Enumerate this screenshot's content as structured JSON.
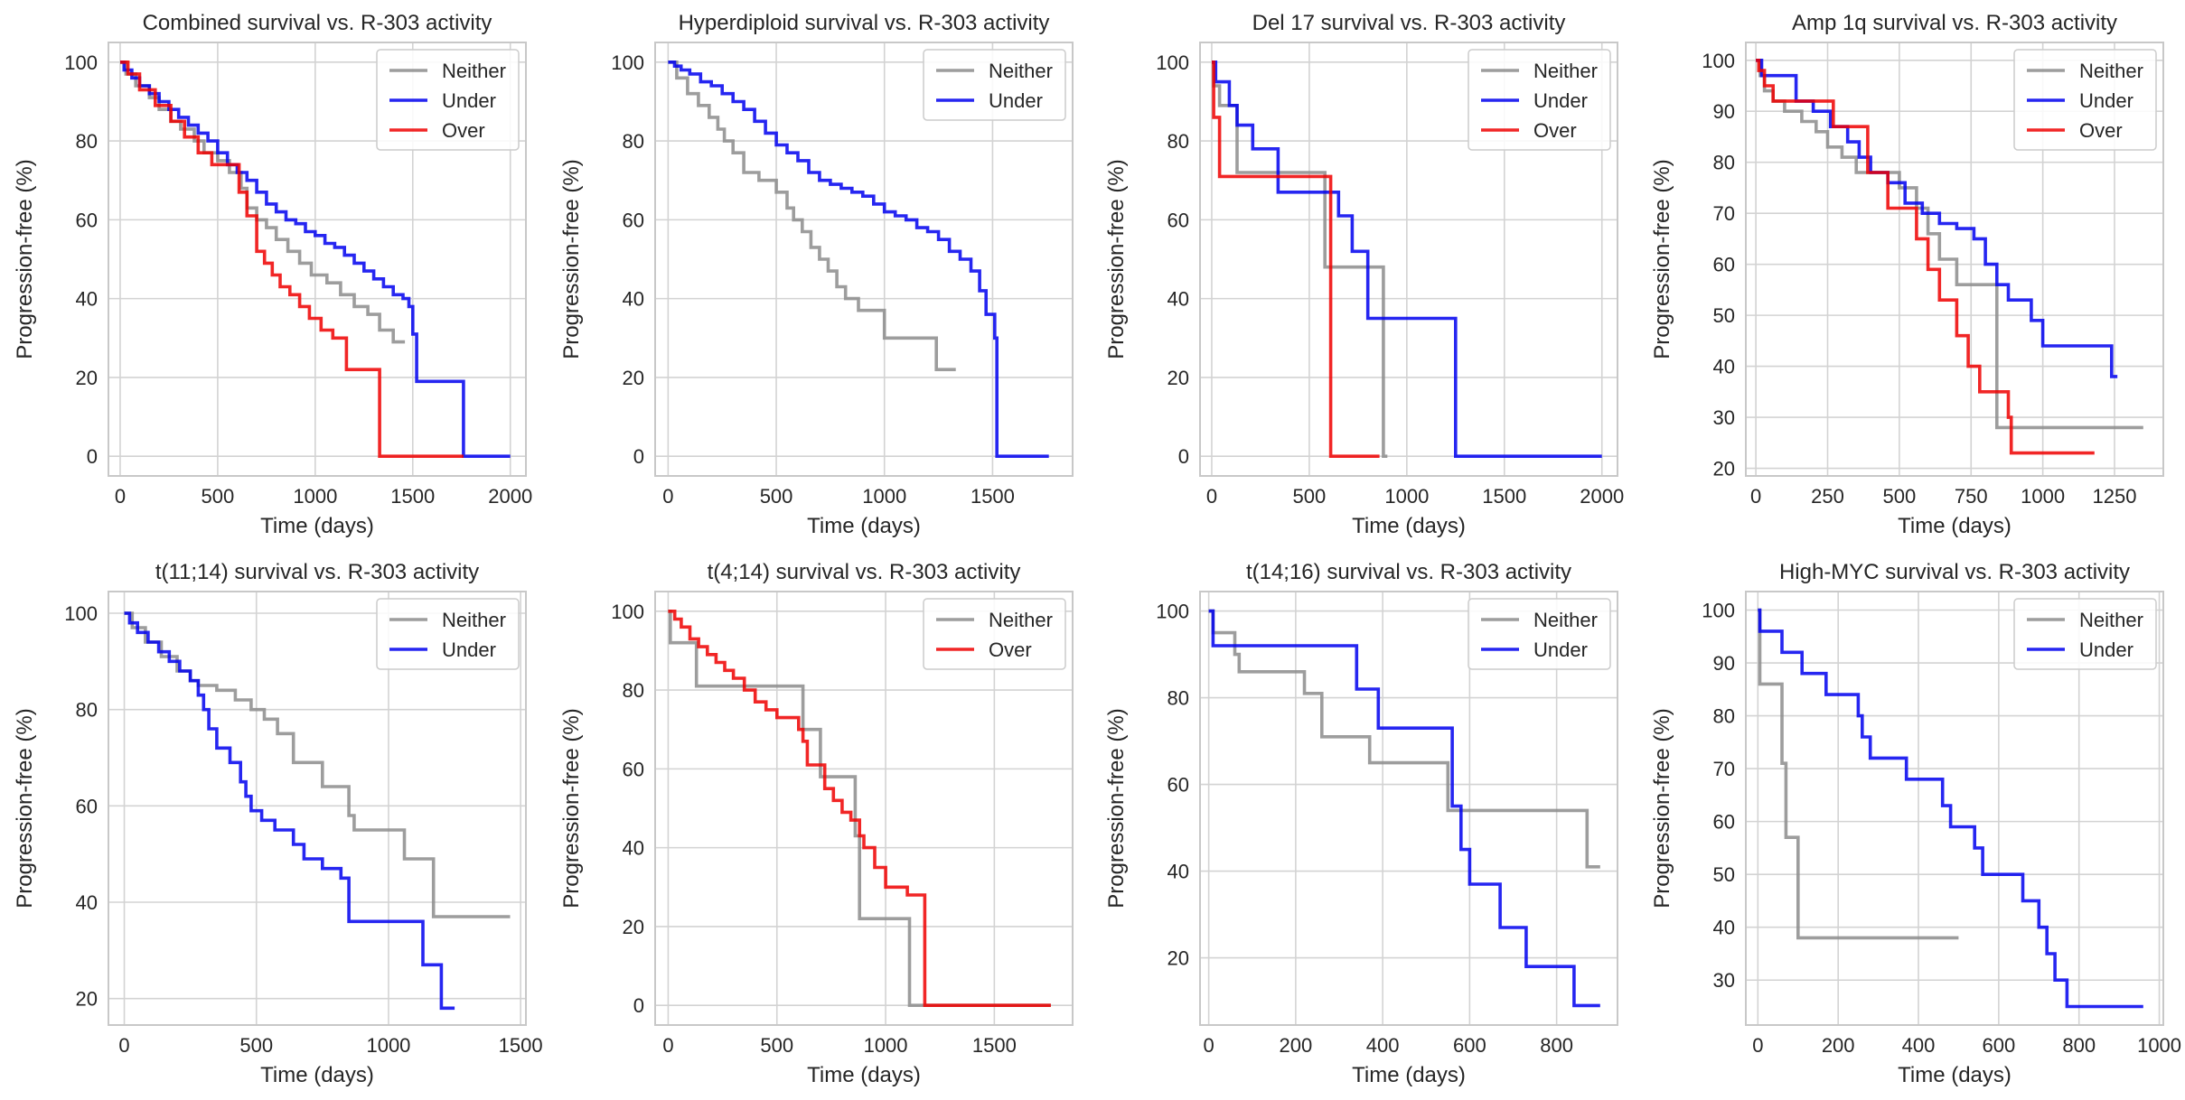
{
  "colors": {
    "Neither": "#8c8c8c",
    "Under": "#0000ee",
    "Over": "#ee0000"
  },
  "chart_data": [
    {
      "type": "line",
      "step": true,
      "title": "Combined survival vs. R-303 activity",
      "xlabel": "Time (days)",
      "ylabel": "Progression-free (%)",
      "xlim": [
        -60,
        2080
      ],
      "ylim": [
        -5,
        105
      ],
      "xticks": [
        0,
        500,
        1000,
        1500,
        2000
      ],
      "yticks": [
        0,
        20,
        40,
        60,
        80,
        100
      ],
      "legend": [
        "Neither",
        "Under",
        "Over"
      ],
      "legend_position": "top-right",
      "series": [
        {
          "name": "Neither",
          "x": [
            0,
            30,
            80,
            150,
            200,
            260,
            310,
            380,
            430,
            500,
            560,
            620,
            650,
            700,
            750,
            800,
            860,
            920,
            980,
            1060,
            1130,
            1200,
            1270,
            1330,
            1400,
            1460
          ],
          "y": [
            100,
            97,
            94,
            91,
            88,
            85,
            83,
            80,
            77,
            75,
            72,
            68,
            63,
            60,
            58,
            55,
            52,
            49,
            46,
            44,
            41,
            38,
            36,
            32,
            29,
            29
          ]
        },
        {
          "name": "Under",
          "x": [
            0,
            20,
            60,
            100,
            150,
            200,
            250,
            300,
            350,
            400,
            450,
            500,
            550,
            600,
            650,
            700,
            750,
            800,
            850,
            900,
            950,
            1000,
            1050,
            1100,
            1150,
            1200,
            1250,
            1300,
            1350,
            1400,
            1450,
            1480,
            1500,
            1520,
            1760,
            2000
          ],
          "y": [
            100,
            98,
            96,
            94,
            92,
            90,
            88,
            86,
            84,
            82,
            80,
            77,
            74,
            72,
            70,
            67,
            64,
            62,
            60,
            59,
            57,
            56,
            54,
            53,
            51,
            49,
            47,
            45,
            43,
            41,
            40,
            38,
            31,
            19,
            0,
            0
          ]
        },
        {
          "name": "Over",
          "x": [
            0,
            40,
            100,
            180,
            260,
            330,
            400,
            470,
            540,
            610,
            650,
            700,
            740,
            780,
            820,
            870,
            920,
            970,
            1030,
            1090,
            1160,
            1330,
            1760
          ],
          "y": [
            100,
            97,
            93,
            89,
            85,
            81,
            77,
            74,
            74,
            67,
            61,
            52,
            49,
            46,
            43,
            41,
            38,
            35,
            32,
            30,
            22,
            0,
            0
          ]
        }
      ]
    },
    {
      "type": "line",
      "step": true,
      "title": "Hyperdiploid survival vs. R-303 activity",
      "xlabel": "Time (days)",
      "ylabel": "Progression-free (%)",
      "xlim": [
        -60,
        1870
      ],
      "ylim": [
        -5,
        105
      ],
      "xticks": [
        0,
        500,
        1000,
        1500
      ],
      "yticks": [
        0,
        20,
        40,
        60,
        80,
        100
      ],
      "legend": [
        "Neither",
        "Under"
      ],
      "legend_position": "top-right",
      "series": [
        {
          "name": "Neither",
          "x": [
            0,
            40,
            90,
            140,
            190,
            230,
            260,
            300,
            350,
            420,
            500,
            550,
            580,
            620,
            660,
            700,
            740,
            780,
            820,
            880,
            1000,
            1240,
            1330
          ],
          "y": [
            100,
            96,
            92,
            89,
            86,
            83,
            80,
            77,
            72,
            70,
            67,
            63,
            60,
            57,
            53,
            50,
            47,
            43,
            40,
            37,
            30,
            22,
            22
          ]
        },
        {
          "name": "Under",
          "x": [
            0,
            30,
            60,
            100,
            150,
            200,
            250,
            300,
            350,
            400,
            450,
            500,
            550,
            600,
            650,
            700,
            750,
            800,
            850,
            900,
            950,
            1000,
            1050,
            1100,
            1150,
            1200,
            1250,
            1300,
            1350,
            1400,
            1440,
            1470,
            1500,
            1510,
            1520,
            1760
          ],
          "y": [
            100,
            99,
            98,
            97,
            95,
            94,
            92,
            90,
            88,
            85,
            82,
            79,
            77,
            75,
            72,
            70,
            69,
            68,
            67,
            66,
            64,
            62,
            61,
            60,
            58,
            57,
            55,
            52,
            50,
            47,
            42,
            36,
            36,
            30,
            0,
            0
          ]
        }
      ]
    },
    {
      "type": "line",
      "step": true,
      "title": "Del 17 survival vs. R-303 activity",
      "xlabel": "Time (days)",
      "ylabel": "Progression-free (%)",
      "xlim": [
        -60,
        2080
      ],
      "ylim": [
        -5,
        105
      ],
      "xticks": [
        0,
        500,
        1000,
        1500,
        2000
      ],
      "yticks": [
        0,
        20,
        40,
        60,
        80,
        100
      ],
      "legend": [
        "Neither",
        "Under",
        "Over"
      ],
      "legend_position": "top-right",
      "series": [
        {
          "name": "Neither",
          "x": [
            0,
            10,
            40,
            130,
            560,
            580,
            860,
            880,
            900
          ],
          "y": [
            100,
            94,
            89,
            72,
            72,
            48,
            48,
            0,
            0
          ]
        },
        {
          "name": "Under",
          "x": [
            0,
            20,
            90,
            130,
            210,
            340,
            560,
            650,
            720,
            800,
            1250,
            2000
          ],
          "y": [
            100,
            95,
            89,
            84,
            78,
            67,
            67,
            61,
            52,
            35,
            0,
            0
          ]
        },
        {
          "name": "Over",
          "x": [
            0,
            10,
            40,
            600,
            610,
            860
          ],
          "y": [
            100,
            86,
            71,
            71,
            0,
            0
          ]
        }
      ]
    },
    {
      "type": "line",
      "step": true,
      "title": "Amp 1q survival vs. R-303 activity",
      "xlabel": "Time (days)",
      "ylabel": "Progression-free (%)",
      "xlim": [
        -35,
        1420
      ],
      "ylim": [
        18.5,
        103.5
      ],
      "xticks": [
        0,
        250,
        500,
        750,
        1000,
        1250
      ],
      "yticks": [
        20,
        30,
        40,
        50,
        60,
        70,
        80,
        90,
        100
      ],
      "legend": [
        "Neither",
        "Under",
        "Over"
      ],
      "legend_position": "top-right",
      "series": [
        {
          "name": "Neither",
          "x": [
            0,
            15,
            30,
            60,
            100,
            160,
            210,
            250,
            300,
            350,
            400,
            450,
            500,
            560,
            600,
            640,
            700,
            760,
            820,
            840,
            850,
            1350
          ],
          "y": [
            100,
            97,
            94,
            92,
            90,
            88,
            86,
            83,
            81,
            78,
            78,
            78,
            75,
            71,
            66,
            61,
            56,
            56,
            56,
            28,
            28,
            28
          ]
        },
        {
          "name": "Under",
          "x": [
            0,
            20,
            140,
            200,
            260,
            320,
            360,
            400,
            460,
            520,
            580,
            640,
            700,
            760,
            800,
            840,
            880,
            960,
            1000,
            1240,
            1260
          ],
          "y": [
            100,
            97,
            92,
            90,
            87,
            84,
            81,
            78,
            76,
            72,
            70,
            68,
            67,
            65,
            60,
            56,
            53,
            49,
            44,
            38,
            38
          ]
        },
        {
          "name": "Over",
          "x": [
            0,
            10,
            30,
            60,
            200,
            270,
            330,
            360,
            390,
            460,
            520,
            560,
            600,
            640,
            700,
            740,
            780,
            820,
            880,
            890,
            1180
          ],
          "y": [
            100,
            98,
            95,
            92,
            92,
            87,
            87,
            87,
            78,
            71,
            71,
            65,
            59,
            53,
            46,
            40,
            35,
            35,
            30,
            23,
            23
          ]
        }
      ]
    },
    {
      "type": "line",
      "step": true,
      "title": "t(11;14) survival vs. R-303 activity",
      "xlabel": "Time (days)",
      "ylabel": "Progression-free (%)",
      "xlim": [
        -60,
        1520
      ],
      "ylim": [
        14.5,
        104.5
      ],
      "xticks": [
        0,
        500,
        1000,
        1500
      ],
      "yticks": [
        20,
        40,
        60,
        80,
        100
      ],
      "legend": [
        "Neither",
        "Under"
      ],
      "legend_position": "top-right",
      "series": [
        {
          "name": "Neither",
          "x": [
            0,
            30,
            80,
            140,
            200,
            250,
            280,
            350,
            420,
            480,
            530,
            580,
            640,
            750,
            850,
            870,
            1060,
            1170,
            1460
          ],
          "y": [
            100,
            97,
            94,
            91,
            88,
            86,
            85,
            84,
            82,
            80,
            78,
            75,
            69,
            64,
            58,
            55,
            49,
            37,
            37
          ]
        },
        {
          "name": "Under",
          "x": [
            0,
            20,
            50,
            90,
            130,
            170,
            210,
            250,
            280,
            300,
            320,
            350,
            400,
            440,
            460,
            480,
            520,
            570,
            640,
            680,
            750,
            820,
            850,
            1130,
            1170,
            1200,
            1250
          ],
          "y": [
            100,
            98,
            96,
            94,
            92,
            90,
            88,
            86,
            83,
            80,
            76,
            72,
            69,
            65,
            62,
            59,
            57,
            55,
            52,
            49,
            47,
            45,
            36,
            27,
            27,
            18,
            18
          ]
        }
      ]
    },
    {
      "type": "line",
      "step": true,
      "title": "t(4;14) survival vs. R-303 activity",
      "xlabel": "Time (days)",
      "ylabel": "Progression-free (%)",
      "xlim": [
        -60,
        1860
      ],
      "ylim": [
        -5,
        105
      ],
      "xticks": [
        0,
        500,
        1000,
        1500
      ],
      "yticks": [
        0,
        20,
        40,
        60,
        80,
        100
      ],
      "legend": [
        "Neither",
        "Over"
      ],
      "legend_position": "top-right",
      "series": [
        {
          "name": "Neither",
          "x": [
            0,
            10,
            130,
            600,
            620,
            700,
            860,
            880,
            1090,
            1110,
            1760
          ],
          "y": [
            100,
            92,
            81,
            81,
            70,
            58,
            43,
            22,
            22,
            0,
            0
          ]
        },
        {
          "name": "Over",
          "x": [
            0,
            30,
            60,
            100,
            140,
            180,
            220,
            260,
            300,
            350,
            400,
            450,
            500,
            560,
            600,
            620,
            640,
            700,
            720,
            760,
            800,
            840,
            880,
            900,
            950,
            1000,
            1100,
            1180,
            1760
          ],
          "y": [
            100,
            98,
            96,
            93,
            91,
            89,
            87,
            85,
            83,
            80,
            77,
            75,
            73,
            73,
            70,
            67,
            61,
            61,
            55,
            52,
            49,
            47,
            43,
            40,
            35,
            30,
            28,
            0,
            0
          ]
        }
      ]
    },
    {
      "type": "line",
      "step": true,
      "title": "t(14;16) survival vs. R-303 activity",
      "xlabel": "Time (days)",
      "ylabel": "Progression-free (%)",
      "xlim": [
        -20,
        940
      ],
      "ylim": [
        4.5,
        104.5
      ],
      "xticks": [
        0,
        200,
        400,
        600,
        800
      ],
      "yticks": [
        20,
        40,
        60,
        80,
        100
      ],
      "legend": [
        "Neither",
        "Under"
      ],
      "legend_position": "top-right",
      "series": [
        {
          "name": "Neither",
          "x": [
            0,
            10,
            60,
            70,
            220,
            260,
            370,
            550,
            870,
            900
          ],
          "y": [
            100,
            95,
            90,
            86,
            81,
            71,
            65,
            54,
            41,
            41
          ]
        },
        {
          "name": "Under",
          "x": [
            0,
            10,
            340,
            390,
            560,
            580,
            600,
            670,
            730,
            840,
            900
          ],
          "y": [
            100,
            92,
            82,
            73,
            55,
            45,
            37,
            27,
            18,
            9,
            9
          ]
        }
      ]
    },
    {
      "type": "line",
      "step": true,
      "title": "High-MYC survival vs. R-303 activity",
      "xlabel": "Time (days)",
      "ylabel": "Progression-free (%)",
      "xlim": [
        -30,
        1010
      ],
      "ylim": [
        21.5,
        103.5
      ],
      "xticks": [
        0,
        200,
        400,
        600,
        800,
        1000
      ],
      "yticks": [
        30,
        40,
        50,
        60,
        70,
        80,
        90,
        100
      ],
      "legend": [
        "Neither",
        "Under"
      ],
      "legend_position": "top-right",
      "series": [
        {
          "name": "Neither",
          "x": [
            0,
            5,
            60,
            70,
            100,
            500
          ],
          "y": [
            100,
            86,
            71,
            57,
            38,
            38
          ]
        },
        {
          "name": "Under",
          "x": [
            0,
            5,
            60,
            110,
            170,
            250,
            260,
            280,
            370,
            460,
            480,
            540,
            560,
            660,
            700,
            720,
            740,
            770,
            960
          ],
          "y": [
            100,
            96,
            92,
            88,
            84,
            80,
            76,
            72,
            68,
            63,
            59,
            55,
            50,
            45,
            40,
            35,
            30,
            25,
            25
          ]
        }
      ]
    }
  ]
}
